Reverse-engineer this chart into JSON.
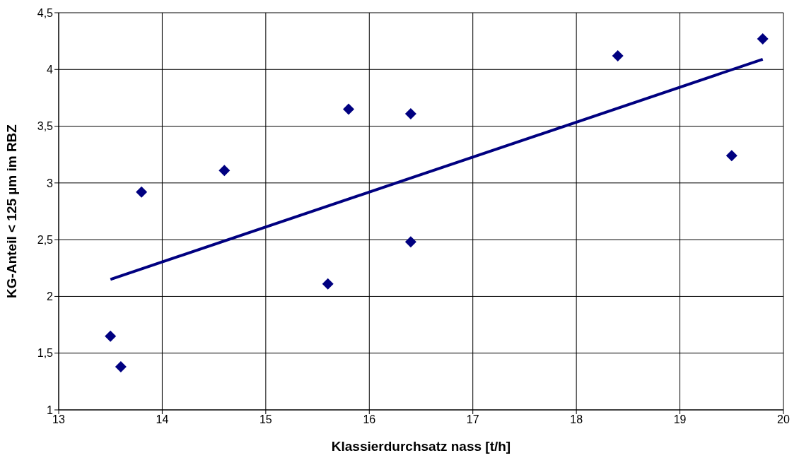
{
  "chart_data": {
    "type": "scatter",
    "xlabel": "Klassierdurchsatz nass [t/h]",
    "ylabel": "KG-Anteil < 125 µm im RBZ",
    "xlim": [
      13,
      20
    ],
    "xticks": [
      13,
      14,
      15,
      16,
      17,
      18,
      19,
      20
    ],
    "ylim": [
      1,
      4.5
    ],
    "yticks": [
      1,
      {
        "value": 1.5,
        "label": "1,5"
      },
      2,
      {
        "value": 2.5,
        "label": "2,5"
      },
      3,
      {
        "value": 3.5,
        "label": "3,5"
      },
      4,
      {
        "value": 4.5,
        "label": "4,5"
      }
    ],
    "grid": true,
    "legend": false,
    "marker": "diamond",
    "series": [
      {
        "color": "#000080",
        "x": [
          13.5,
          13.6,
          13.8,
          14.6,
          15.6,
          15.8,
          16.4,
          16.4,
          18.4,
          19.5,
          19.8
        ],
        "values": [
          1.65,
          1.38,
          2.92,
          3.11,
          2.11,
          3.65,
          3.61,
          2.48,
          4.12,
          3.24,
          4.27
        ]
      },
      {
        "type": "line",
        "color": "#000080",
        "marker": "none",
        "x": [
          13.5,
          19.8
        ],
        "values": [
          2.15,
          4.09
        ]
      }
    ]
  }
}
